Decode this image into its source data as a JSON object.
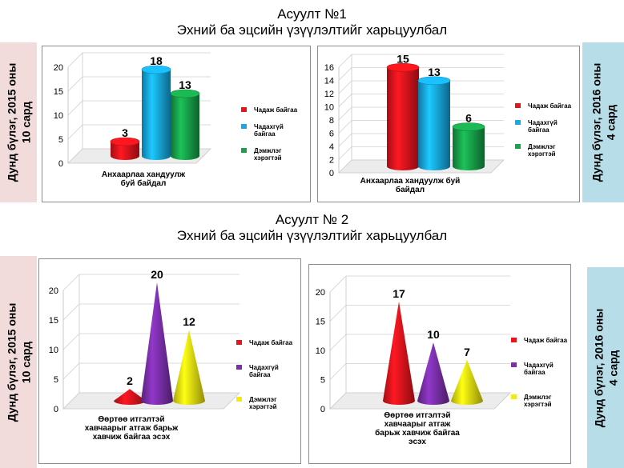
{
  "question1": {
    "title_line1": "Асуулт  №1",
    "title_line2": "Эхний ба эцсийн үзүүлэлтийг харьцуулбал"
  },
  "question2": {
    "title_line1": "Асуулт  № 2",
    "title_line2": "Эхний ба эцсийн үзүүлэлтийг харьцуулбал"
  },
  "side_labels": {
    "left_line1": "Дунд бүлэг, 2015 оны",
    "left_line2": "10 сард",
    "right_line1": "Дунд бүлэг,  2016 оны",
    "right_line2": "4 сард"
  },
  "colors": {
    "red": "#e8141c",
    "blue": "#17a8e6",
    "green": "#18a24a",
    "purple": "#7a2fa8",
    "yellow": "#f2ea10",
    "side_pink": "#f2dcdb",
    "side_blue": "#b7dee8"
  },
  "legend": [
    "Чадаж байгаа",
    "Чадахгүй байгаа",
    "Дэмжлэг хэрэгтэй"
  ],
  "chart_data": [
    {
      "type": "bar",
      "shape": "3d-cylinder",
      "categories": [
        "Анхаарлаа хандуулж буй байдал"
      ],
      "series": [
        {
          "name": "Чадаж байгаа",
          "values": [
            3
          ]
        },
        {
          "name": "Чадахгүй байгаа",
          "values": [
            18
          ]
        },
        {
          "name": "Дэмжлэг хэрэгтэй",
          "values": [
            13
          ]
        }
      ],
      "ylim": [
        0,
        20
      ],
      "yticks": [
        "0",
        "5",
        "10",
        "15",
        "20"
      ],
      "legend_position": "right"
    },
    {
      "type": "bar",
      "shape": "3d-cylinder",
      "categories": [
        "Анхаарлаа хандуулж буй байдал"
      ],
      "series": [
        {
          "name": "Чадаж байгаа",
          "values": [
            15
          ]
        },
        {
          "name": "Чадахгүй байгаа",
          "values": [
            13
          ]
        },
        {
          "name": "Дэмжлэг хэрэгтэй",
          "values": [
            6
          ]
        }
      ],
      "ylim": [
        0,
        16
      ],
      "yticks": [
        "0",
        "2",
        "4",
        "6",
        "8",
        "10",
        "12",
        "14",
        "16"
      ],
      "legend_position": "right"
    },
    {
      "type": "bar",
      "shape": "3d-cone",
      "categories": [
        "Өөртөө итгэлтэй хавчаарыг атгаж барьж хавчиж байгаа эсэх"
      ],
      "series": [
        {
          "name": "Чадаж байгаа",
          "values": [
            2
          ]
        },
        {
          "name": "Чадахгүй байгаа",
          "values": [
            20
          ]
        },
        {
          "name": "Дэмжлэг хэрэгтэй",
          "values": [
            12
          ]
        }
      ],
      "ylim": [
        0,
        20
      ],
      "yticks": [
        "0",
        "5",
        "10",
        "15",
        "20"
      ],
      "legend_position": "right"
    },
    {
      "type": "bar",
      "shape": "3d-cone",
      "categories": [
        "Өөртөө итгэлтэй хавчаарыг атгаж барьж хавчиж байгаа эсэх"
      ],
      "series": [
        {
          "name": "Чадаж байгаа",
          "values": [
            17
          ]
        },
        {
          "name": "Чадахгүй байгаа",
          "values": [
            10
          ]
        },
        {
          "name": "Дэмжлэг хэрэгтэй",
          "values": [
            7
          ]
        }
      ],
      "ylim": [
        0,
        20
      ],
      "yticks": [
        "0",
        "5",
        "10",
        "15",
        "20"
      ],
      "legend_position": "right"
    }
  ]
}
